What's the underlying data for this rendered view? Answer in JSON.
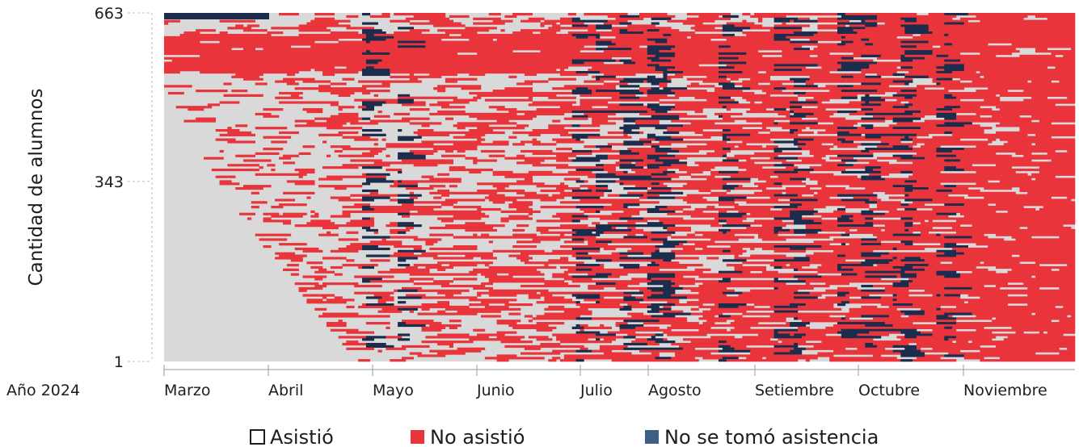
{
  "chart_data": {
    "type": "heatmap",
    "title": "",
    "ylabel": "Cantidad de alumnos",
    "xlabel": "",
    "year_label": "Año 2024",
    "y_ticks": [
      {
        "value": 663,
        "label": "663"
      },
      {
        "value": 343,
        "label": "343"
      },
      {
        "value": 1,
        "label": "1"
      }
    ],
    "ylim": [
      1,
      663
    ],
    "months": [
      "Marzo",
      "Abril",
      "Mayo",
      "Junio",
      "Julio",
      "Agosto",
      "Setiembre",
      "Octubre",
      "Noviembre"
    ],
    "legend_position": "bottom",
    "legend": [
      {
        "key": "asistio",
        "label": "Asistió",
        "color": "#ffffff",
        "stroke": "#1d1d1b"
      },
      {
        "key": "no_asistio",
        "label": "No asistió",
        "color": "#e8343a"
      },
      {
        "key": "sin_registro",
        "label": "No se tomó asistencia",
        "color": "#3b5f86"
      }
    ],
    "colors": {
      "attended": "#d9d9d9",
      "absent": "#e8343a",
      "no_record": "#1c2c4c"
    },
    "grid": false
  }
}
